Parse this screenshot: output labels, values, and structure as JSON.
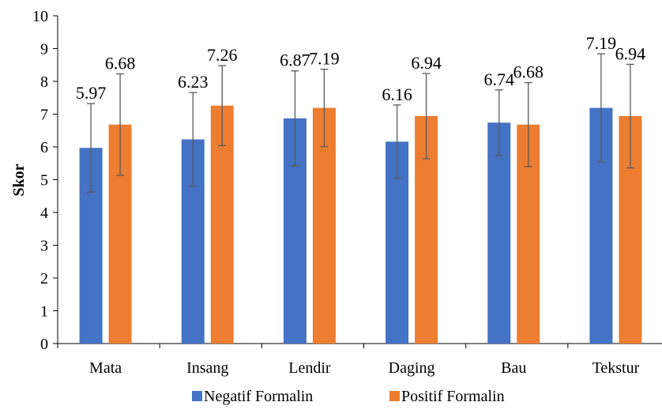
{
  "chart_data": {
    "type": "bar",
    "title": "",
    "xlabel": "",
    "ylabel": "Skor",
    "ylim": [
      0,
      10
    ],
    "yticks": [
      0,
      1,
      2,
      3,
      4,
      5,
      6,
      7,
      8,
      9,
      10
    ],
    "categories": [
      "Mata",
      "Insang",
      "Lendir",
      "Daging",
      "Bau",
      "Tekstur"
    ],
    "series": [
      {
        "name": "Negatif Formalin",
        "color": "#4472C4",
        "values": [
          5.97,
          6.23,
          6.87,
          6.16,
          6.74,
          7.19
        ],
        "error": [
          1.35,
          1.43,
          1.45,
          1.12,
          1.0,
          1.65
        ]
      },
      {
        "name": "Positif Formalin",
        "color": "#ED7D31",
        "values": [
          6.68,
          7.26,
          7.19,
          6.94,
          6.68,
          6.94
        ],
        "error": [
          1.55,
          1.22,
          1.18,
          1.3,
          1.28,
          1.58
        ]
      }
    ],
    "grid": false,
    "legend_position": "bottom"
  }
}
